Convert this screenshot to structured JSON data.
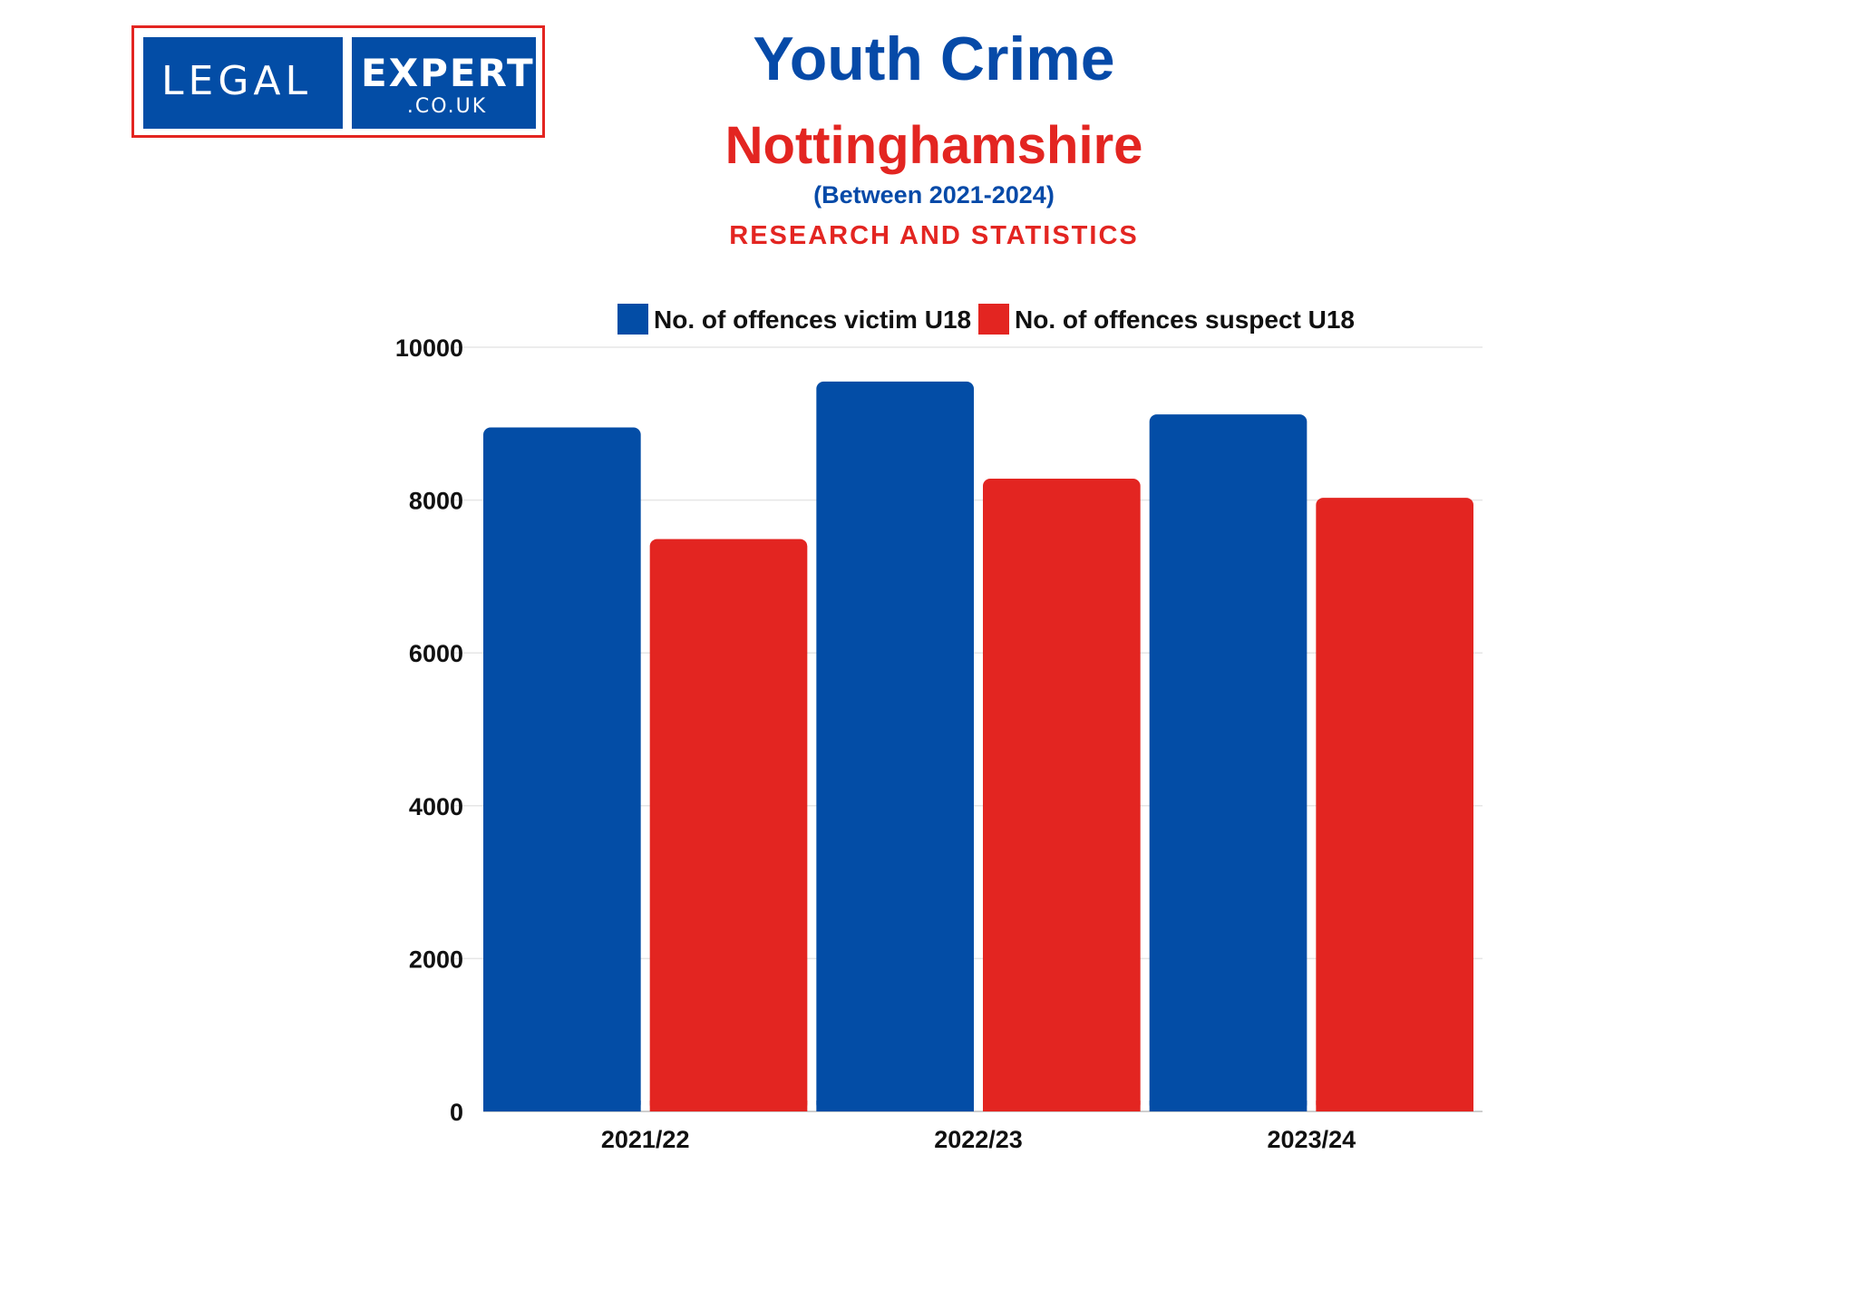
{
  "logo": {
    "text_left": "LEGAL",
    "text_right": "EXPERT",
    "text_sub": ".CO.UK",
    "box_color": "#034da6",
    "border_color": "#e32521"
  },
  "header": {
    "title": "Youth Crime",
    "subtitle": "Nottinghamshire",
    "period": "(Between 2021-2024)",
    "tagline": "RESEARCH AND STATISTICS"
  },
  "chart_data": {
    "type": "bar",
    "categories": [
      "2021/22",
      "2022/23",
      "2023/24"
    ],
    "series": [
      {
        "name": "No. of offences victim U18",
        "color": "#034da6",
        "values": [
          8950,
          9550,
          9120
        ]
      },
      {
        "name": "No. of offences suspect U18",
        "color": "#e32521",
        "values": [
          7490,
          8280,
          8030
        ]
      }
    ],
    "ylim": [
      0,
      10000
    ],
    "yticks": [
      0,
      2000,
      4000,
      6000,
      8000,
      10000
    ],
    "grid": true,
    "legend_position": "top",
    "xlabel": "",
    "ylabel": "",
    "title": ""
  }
}
